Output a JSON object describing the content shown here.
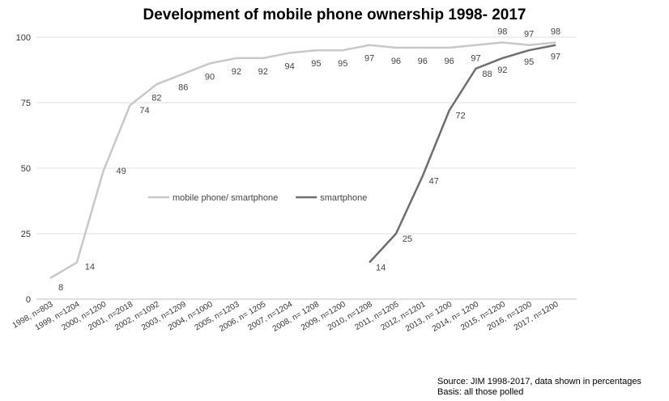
{
  "chart_data": {
    "type": "line",
    "title": "Development of mobile phone ownership 1998- 2017",
    "categories": [
      "1998, n=803",
      "1999, n=1204",
      "2000, n=1200",
      "2001, n=2018",
      "2002, n=1092",
      "2003, n=1209",
      "2004, n=1000",
      "2005, n=1203",
      "2006, n= 1205",
      "2007, n=1204",
      "2008, n= 1208",
      "2009, n=1200",
      "2010, n=1208",
      "2011, n=1205",
      "2012, n=1201",
      "2013, n= 1200",
      "2014, n= 1200",
      "2015, n=1200",
      "2016, n=1200",
      "2017, n=1200"
    ],
    "series": [
      {
        "name": "mobile phone/ smartphone",
        "color": "#c8c8c8",
        "values": [
          8,
          14,
          49,
          74,
          82,
          86,
          90,
          92,
          92,
          94,
          95,
          95,
          97,
          96,
          96,
          96,
          97,
          98,
          97,
          98
        ]
      },
      {
        "name": "smartphone",
        "color": "#6e6e6e",
        "values": [
          null,
          null,
          null,
          null,
          null,
          null,
          null,
          null,
          null,
          null,
          null,
          null,
          14,
          25,
          47,
          72,
          88,
          92,
          95,
          97
        ]
      }
    ],
    "yticks": [
      0,
      25,
      50,
      75,
      100
    ],
    "ylim": [
      0,
      100
    ],
    "legend_position": "center",
    "grid": true
  },
  "source": "Source: JIM  1998-2017, data shown in percentages",
  "basis": "Basis: all those polled"
}
